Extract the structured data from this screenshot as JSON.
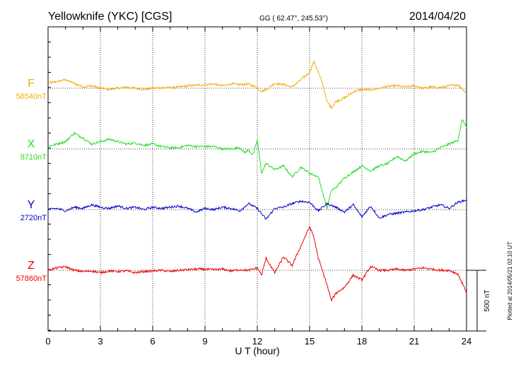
{
  "header": {
    "station": "Yellowknife (YKC)  [CGS]",
    "coords": "GG ( 62.47°, 245.53°)",
    "date": "2014/04/20"
  },
  "footer": {
    "plotted": "Plotted at 2014/05/21 02:10 UT",
    "scale_label": "500 nT"
  },
  "colors": {
    "F": "#f5aa00",
    "X": "#22dd22",
    "Y": "#0000cc",
    "Z": "#ee0000"
  },
  "chart_data": {
    "type": "line",
    "title": "Yellowknife (YKC)  [CGS]",
    "xlabel": "U T (hour)",
    "ylabel": "",
    "xlim": [
      0,
      24
    ],
    "x_ticks": [
      "0",
      "3",
      "6",
      "9",
      "12",
      "15",
      "18",
      "21",
      "24"
    ],
    "scale_bar_nT": 500,
    "grid": true,
    "series": [
      {
        "name": "F",
        "baseline_label": "58540nT",
        "x": [
          0,
          0.5,
          1,
          1.5,
          2,
          2.5,
          3,
          3.5,
          4,
          4.5,
          5,
          5.5,
          6,
          6.5,
          7,
          7.5,
          8,
          8.5,
          9,
          9.5,
          10,
          10.5,
          11,
          11.5,
          12,
          12.25,
          12.5,
          13,
          13.5,
          14,
          14.5,
          15,
          15.25,
          15.5,
          15.75,
          16,
          16.25,
          16.5,
          17,
          17.5,
          18,
          18.5,
          19,
          19.5,
          20,
          20.5,
          21,
          21.5,
          22,
          22.5,
          23,
          23.5,
          24
        ],
        "values": [
          40,
          55,
          70,
          40,
          10,
          20,
          0,
          -10,
          0,
          10,
          0,
          -10,
          0,
          5,
          5,
          10,
          20,
          25,
          30,
          35,
          20,
          35,
          30,
          35,
          5,
          -25,
          -10,
          40,
          30,
          10,
          70,
          130,
          220,
          130,
          40,
          -110,
          -160,
          -110,
          -80,
          -30,
          -10,
          -15,
          0,
          15,
          20,
          10,
          20,
          0,
          10,
          5,
          20,
          30,
          -40
        ]
      },
      {
        "name": "X",
        "baseline_label": "8710nT",
        "x": [
          0,
          0.5,
          1,
          1.5,
          2,
          2.5,
          3,
          3.5,
          4,
          4.5,
          5,
          5.5,
          6,
          6.5,
          7,
          7.5,
          8,
          8.5,
          9,
          9.5,
          10,
          10.5,
          11,
          11.25,
          11.5,
          11.75,
          12,
          12.25,
          12.5,
          13,
          13.5,
          14,
          14.5,
          15,
          15.5,
          16,
          16.25,
          16.5,
          17,
          17.5,
          18,
          18.5,
          19,
          19.5,
          20,
          20.5,
          21,
          21.5,
          22,
          22.5,
          23,
          23.5,
          23.75,
          24
        ],
        "values": [
          20,
          40,
          60,
          130,
          90,
          40,
          60,
          80,
          60,
          40,
          50,
          30,
          40,
          20,
          10,
          10,
          30,
          20,
          20,
          20,
          0,
          0,
          10,
          -30,
          -10,
          -50,
          70,
          -200,
          -120,
          -170,
          -140,
          -230,
          -150,
          -200,
          -230,
          -490,
          -340,
          -320,
          -240,
          -190,
          -140,
          -180,
          -140,
          -120,
          -60,
          -100,
          -40,
          -20,
          -30,
          10,
          40,
          70,
          240,
          180
        ]
      },
      {
        "name": "Y",
        "baseline_label": "2720nT",
        "x": [
          0,
          0.5,
          1,
          1.5,
          2,
          2.5,
          3,
          3.5,
          4,
          4.5,
          5,
          5.5,
          6,
          6.5,
          7,
          7.5,
          8,
          8.5,
          9,
          9.5,
          10,
          10.5,
          11,
          11.5,
          12,
          12.5,
          13,
          13.5,
          14,
          14.5,
          15,
          15.5,
          16,
          16.5,
          17,
          17.5,
          18,
          18.5,
          19,
          19.5,
          20,
          20.5,
          21,
          21.5,
          22,
          22.5,
          23,
          23.5,
          24
        ],
        "values": [
          0,
          10,
          -10,
          20,
          10,
          40,
          20,
          10,
          30,
          10,
          20,
          0,
          20,
          10,
          20,
          30,
          10,
          -20,
          10,
          0,
          20,
          10,
          -10,
          50,
          10,
          -80,
          10,
          20,
          50,
          70,
          60,
          -10,
          50,
          20,
          -20,
          40,
          -60,
          30,
          -70,
          -40,
          -30,
          -20,
          -10,
          0,
          20,
          40,
          10,
          60,
          80
        ]
      },
      {
        "name": "Z",
        "baseline_label": "57860nT",
        "x": [
          0,
          0.5,
          1,
          1.5,
          2,
          2.5,
          3,
          3.5,
          4,
          4.5,
          5,
          5.5,
          6,
          6.5,
          7,
          7.5,
          8,
          8.5,
          9,
          9.5,
          10,
          10.5,
          11,
          11.5,
          12,
          12.25,
          12.5,
          13,
          13.5,
          14,
          14.5,
          15,
          15.25,
          15.5,
          16,
          16.25,
          16.5,
          17,
          17.5,
          18,
          18.5,
          19,
          19.5,
          20,
          20.5,
          21,
          21.5,
          22,
          22.5,
          23,
          23.5,
          24
        ],
        "values": [
          0,
          20,
          30,
          0,
          -10,
          -5,
          -20,
          -5,
          -10,
          -5,
          -20,
          -10,
          -5,
          0,
          -10,
          0,
          5,
          10,
          10,
          5,
          10,
          -5,
          5,
          0,
          20,
          -40,
          100,
          -20,
          110,
          40,
          200,
          360,
          270,
          100,
          -120,
          -250,
          -190,
          -140,
          -40,
          -80,
          30,
          0,
          0,
          10,
          0,
          10,
          20,
          10,
          0,
          0,
          -30,
          -180
        ]
      }
    ]
  }
}
